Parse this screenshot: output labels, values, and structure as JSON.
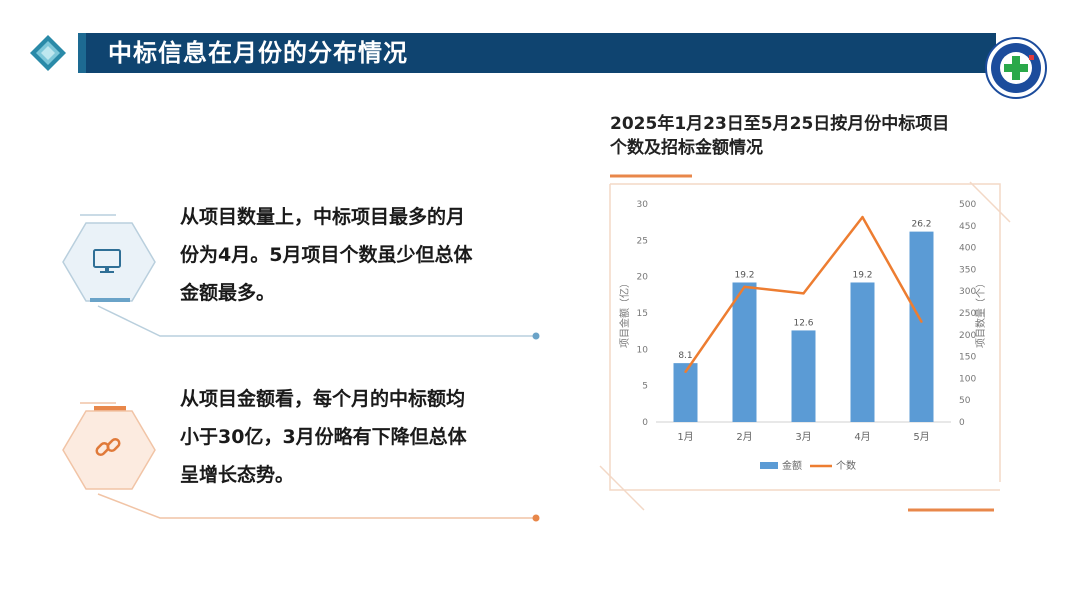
{
  "header": {
    "title": "中标信息在月份的分布情况",
    "badge_icon": "cross-badge-icon",
    "accent_color": "#0f4470"
  },
  "points": [
    {
      "icon": "monitor-icon",
      "text_line1": "从项目数量上，中标项目最多的月",
      "text_line2": "份为4月。5月项目个数虽少但总体",
      "text_line3": "金额最多。",
      "color": "#6aa3c8"
    },
    {
      "icon": "link-icon",
      "text_line1": "从项目金额看，每个月的中标额均",
      "text_line2": "小于30亿，3月份略有下降但总体",
      "text_line3": "呈增长态势。",
      "color": "#e8874a"
    }
  ],
  "chart_heading": {
    "line1": "2025年1月23日至5月25日按月份中标项目",
    "line2": "个数及招标金额情况"
  },
  "chart_data": {
    "type": "bar",
    "categories": [
      "1月",
      "2月",
      "3月",
      "4月",
      "5月"
    ],
    "series": [
      {
        "name": "金额",
        "type": "bar",
        "axis": "left",
        "values": [
          8.1,
          19.2,
          12.6,
          19.2,
          26.2
        ],
        "color": "#5b9bd5"
      },
      {
        "name": "个数",
        "type": "line",
        "axis": "right",
        "values": [
          115,
          310,
          295,
          470,
          230
        ],
        "color": "#ed7d31"
      }
    ],
    "data_labels": [
      "8.1",
      "19.2",
      "12.6",
      "19.2",
      "26.2"
    ],
    "ylabel": "项目金额（亿）",
    "y2label": "项目数量（个）",
    "ylim": [
      0,
      30
    ],
    "y2lim": [
      0,
      500
    ],
    "yticks": [
      "0",
      "5",
      "10",
      "15",
      "20",
      "25",
      "30"
    ],
    "y2ticks": [
      "0",
      "50",
      "100",
      "150",
      "200",
      "250",
      "300",
      "350",
      "400",
      "450",
      "500"
    ],
    "legend_position": "bottom",
    "grid": false
  }
}
